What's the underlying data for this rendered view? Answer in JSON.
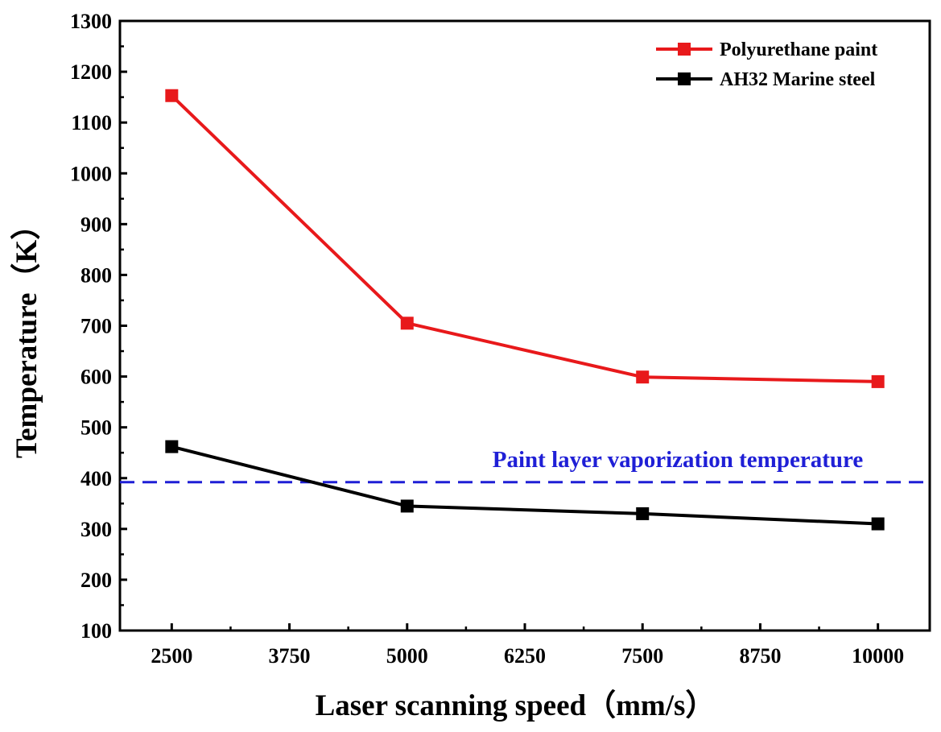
{
  "chart_data": {
    "type": "line",
    "title": "",
    "xlabel": "Laser scanning speed（mm/s）",
    "ylabel": "Temperature（K）",
    "x": [
      2500,
      5000,
      7500,
      10000
    ],
    "xticks": [
      2500,
      3750,
      5000,
      6250,
      7500,
      8750,
      10000
    ],
    "xlim": [
      1950,
      10550
    ],
    "ylim": [
      100,
      1300
    ],
    "yticks": [
      100,
      200,
      300,
      400,
      500,
      600,
      700,
      800,
      900,
      1000,
      1100,
      1200,
      1300
    ],
    "series": [
      {
        "name": "Polyurethane paint",
        "color": "#e8191b",
        "marker": "square",
        "values": [
          1153,
          705,
          599,
          590
        ]
      },
      {
        "name": "AH32 Marine steel",
        "color": "#000000",
        "marker": "square",
        "values": [
          462,
          345,
          330,
          310
        ]
      }
    ],
    "reference_line": {
      "label": "Paint layer vaporization temperature",
      "y": 392,
      "color": "#1f1fd6",
      "style": "dashed"
    },
    "legend_position": "top-right",
    "grid": false
  }
}
